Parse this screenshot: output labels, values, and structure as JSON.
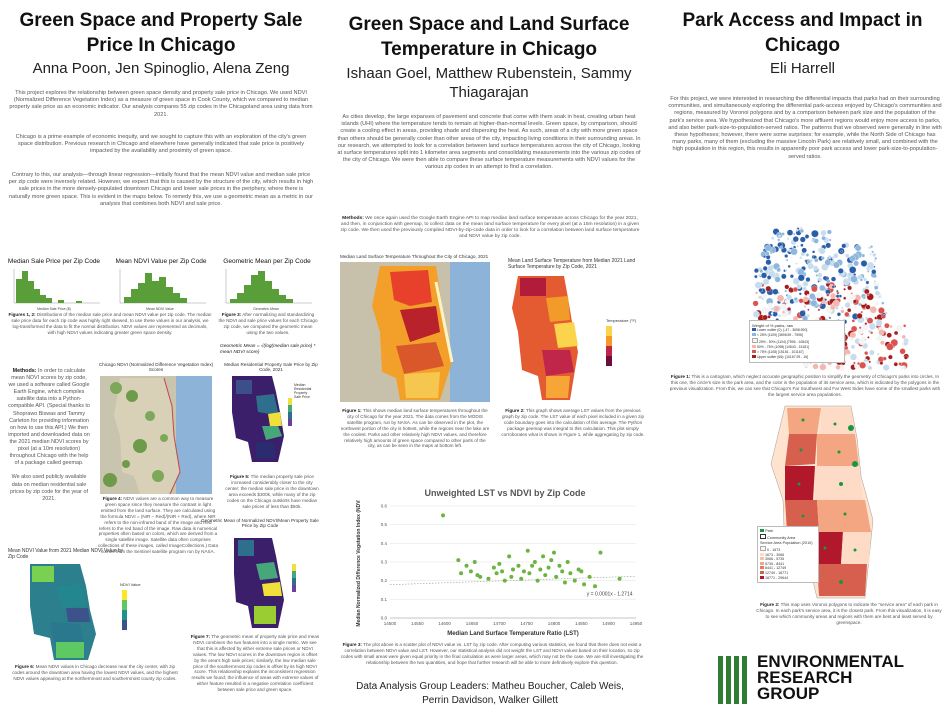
{
  "col1": {
    "title": "Green Space and Property Sale Price In Chicago",
    "authors": "Anna Poon, Jen Spinoglio, Alena Zeng",
    "intro_1": "This project explores the relationship between green space density and property sale price in Chicago. We used NDVI (Normalized Difference Vegetation Index) as a measure of green space in Cook County, which we compared to median property sale price as an economic indicator. Our analysis compares 55 zip codes in the Chicagoland area using data from 2021.",
    "intro_2": "Chicago is a prime example of economic inequity, and we sought to capture this with an exploration of the city's green space distribution. Previous research in Chicago and elsewhere have generally indicated that sale price is positively impacted by the availability and proximity of green space.",
    "intro_3": "Contrary to this, our analysis—through linear regression—initially found that the mean NDVI value and median sale price per zip code were inversely related. However, we expect that this is caused by the structure of the city, which results in high sale prices in the more densely-populated downtown Chicago and lower sale prices in the periphery, where there is naturally more green space. This is evident in the maps below. To remedy this, we use a geometric mean as a metric in our analysis that combines both NDVI and sale price.",
    "hist1_title": "Median Sale Price per Zip Code",
    "hist2_title": "Mean NDVI Value per Zip Code",
    "hist3_title": "Geometric Mean per Zip Code",
    "hist1_xlabel": "Median Sale Price ($)",
    "hist2_xlabel": "Mean NDVI Value",
    "hist3_xlabel": "Geometric Mean",
    "fig12_label": "Figures 1, 2:",
    "fig12_text": "Distributions of the median sale price and mean NDVI value per zip code. The median sale price data for each zip code was highly right skewed, to use these values in our analysis, we log-transformed the data to fit the normal distribution. NDVI values are represented as decimals, with high NDVI values indicating greater green space density.",
    "fig3_label": "Figure 3:",
    "fig3_text": "After normalizing and standardizing the NDVI and sale price values for each Chicago zip code, we computed the geometric mean using the two values.",
    "formula": "Geometric Mean = √(log(median sale price) * mean NDVI score)",
    "methods_label": "Methods:",
    "methods_text": "In order to calculate mean NDVI scores by zip code, we used a software called Google Earth Engine, which compiles satellite data into a Python-compatible API. (Special thanks to Shoprawo Biswas and Tammy Carleton for providing information on how to use this API.) We then imported and downloaded data on the 2021 median NDVI scores by pixel (at a 10m resolution) throughout Chicago with the help of a package called geemap.",
    "methods_text2": "We also used publicly available data on median residential sale prices by zip code for the year of 2021.",
    "map_ndvi_title": "Chicago NDVI (Normalized Difference Vegetation Index) Scores",
    "fig4_label": "Figure 4:",
    "fig4_text": "NDVI values are a common way to measure green space since they measure the contrast in light emitted from the land surface. They are calculated using the formula NDVI = (NIR − Red)/(NIR + Red), where NIR refers to the non-infrared band of the image and Red refers to the red band of the image. Raw data is numerical properties often based on colors, which are derived from a single satellite image. Satellite data often comprises collections of these images, called ImageCollections.) Data comes from the Sentinel satellite program run by NASA.",
    "map_price_title": "Median Residential Property Sale Price by Zip Code, 2021",
    "price_legend": [
      "Median",
      "Residential",
      "Property",
      "Sale Price"
    ],
    "fig5_label": "Figure 5:",
    "fig5_text": "The median property sale price increased considerably closer to the city center; the median sale price in the downtown area exceeds $300k, while many of the zip codes on the Chicago outskirts have median sale prices of less than $50k.",
    "map_geo_title": "Geometric Mean of Normalized NDVI/Mean Property Sale Price by Zip Code",
    "map_ndvi_zip_title": "Mean NDVI Value from 2021 Median NDVI Value by Zip Code",
    "ndvi_legend_title": "NDVI Value",
    "fig6_label": "Figure 6:",
    "fig6_text": "Mean NDVI values in Chicago decrease near the city center, with zip codes around the downtown area having the lowest NDVI values, and the highest NDVI values appearing at the northernmost and southernmost county zip codes.",
    "fig7_label": "Figure 7:",
    "fig7_text": "The geometric mean of property sale price and mean NDVI combines the two features into a single metric. We see that this is affected by either extreme sale prices or NDVI values. The low NDVI scores in the downtown region is offset by the area's high sale prices; similarly, the low median sale price of the southernmost zip codes is offset by its high NDVI score. This relationship explains the inconsistent regression results we found; the influence of areas with extreme values of either feature resulted in a negative correlation coefficient between sale price and green space."
  },
  "col2": {
    "title": "Green Space and Land Surface Temperature in Chicago",
    "authors": "Ishaan Goel, Matthew Rubenstein, Sammy Thiagarajan",
    "intro": "As cities develop, the large expanses of pavement and concrete that come with them soak in heat, creating urban heat islands (UHI) where the temperature tends to remain at higher-than-normal levels. Green space, by comparison, should create a cooling effect in areas, providing shade and dispersing the heat. As such, areas of a city with more green space than others should be generally cooler than other areas of the city, impacting living conditions in their surrounding areas. In our research, we attempted to look for a correlation between land surface temperatures across the city of Chicago, looking at surface temperatures split into 1 kilometer area segments and consolidating measurements into the various zip codes of the city of Chicago. We were then able to compare these surface temperature measurements with NDVI values for the various zip codes in an attempt to find a correlation.",
    "methods_label": "Methods:",
    "methods_text": "We once again used the Google Earth Engine API to map median land surface temperature across Chicago for the year 2021, and then, in conjunction with geemap, to collect data on the mean land surface temperature for every pixel (at a 15m resolution) in a given zip code. We then used the previously compiled NDVI-by-zip-code data in order to look for a correlation between land surface temperature and NDVI value by zip code.",
    "map1_title": "Median Land Surface Temperature Throughout the City of Chicago, 2021",
    "map2_title": "Mean Land Surface Temperature from Median 2021 Land Surface Temperature by Zip Code, 2021",
    "lst_legend_title": "Temperature (°F)",
    "fig1_label": "Figure 1:",
    "fig1_text": "This shows median land surface temperatures throughout the city of Chicago for the year 2021. The data comes from the MODIS satellite program, run by NASA. As can be observed in the plot, the northwest portion of the city is hottest, while the regions near the lake are the coolest. Parks and other relatively high NDVI values, and therefore relatively high amounts of green space compared to other parts of the city, as can be seen in the maps at bottom left.",
    "fig2_label": "Figure 2:",
    "fig2_text": "This graph shows average LST values from the previous graph by zip code. The LST value of each pixel included in a given zip code boundary goes into the calculation of this average. The Python package geemap was integral to this calculation. This plot simply corroborates what is shown in Figure 1, while aggregating by zip code.",
    "fig3_label": "Figure 3:",
    "fig3_text": "The plot above is a scatter plot of NDVI value vs. LST by zip code. After computing various statistics, we found that there does not exist a correlation between NDVI value and LST. However, our statistical analysis did not weight the LST and NDVI values based on their location, so zip codes with small areas were given equal priority in the final calculation as were larger areas, which may not be the case. We are still investigating the relationship between the two quantities, and hope that further research will be able to more definitively explore this question.",
    "leaders": "Data Analysis Group Leaders: Matheu Boucher, Caleb Weis, Perrin Davidson, Walker Gillett"
  },
  "col3": {
    "title": "Park Access and Impact in Chicago",
    "author": "Eli Harrell",
    "intro": "For this project, we were interested in researching the differential impacts that parks had on their surrounding communities, and simultaneously exploring the differential park-access enjoyed by Chicago's communities and regions, measured by Voronoi polygons and by a comparison between park size and the population of the park's service area. We hypothesized that Chicago's more affluent regions would enjoy more access to parks, and also better park-size-to-population-served ratios. The patterns that we observed were generally in line with these hypotheses; however, there were some surprises: for example, while the North Side of Chicago has many parks, many of them (excluding the massive Lincoln Park) are relatively small, and combined with the high population in this region, this results in apparently poor park access and lower park-size-to-population-served ratios.",
    "cart_legend_title": "Weight of % parks, raw",
    "cart_legend": [
      "Lower outlier (0): [-47 - 3698.590]",
      "< 25% (1109) [3698.59 - 7596]",
      "25% - 50% (1104) [7596 - 10843]",
      "50% - 75% (1098) [10843 - 15181]",
      "> 75% (1108) [15181 - 101167]",
      "Upper outlier (66): [10167.99 - 16]"
    ],
    "fig1_label": "Figure 1:",
    "fig1_text": "This is a cartogram, which neglect accurate geographic position to simplify the geometry of Chicago's parks into circles. In this one, the circle's size is the park area, and the color is the population of its service area, which is indicated by the polygons in the previous visualization. From this, we can see that Chicago's Far Southwest and Far West Sides have some of the smallest parks with the largest service area populations.",
    "voronoi_legend_park": "Park",
    "voronoi_legend_area": "Community Area",
    "voronoi_legend_title": "Service Area Population (2010)",
    "voronoi_legend": [
      "0 - 1673",
      "1673 - 3066",
      "3066 - 5735",
      "5735 - 8441",
      "8441 - 12749",
      "12749 - 18771",
      "18771 - 29644"
    ],
    "fig2_label": "Figure 2:",
    "fig2_text": "This map uses Voronoi polygons to indicate the \"service area\" of each park in Chicago. In each park's service area, it is the closest park. From this visualization, it is easy to see which community areas and regions with them are best and least served by greenspace.",
    "logo_text": [
      "ENVIRONMENTAL",
      "RESEARCH",
      "GROUP"
    ]
  },
  "chart_data": [
    {
      "type": "scatter",
      "title": "Unweighted LST vs NDVI by Zip Code",
      "xlabel": "Median Land Surface Temperature Ratio (LST)",
      "ylabel": "Median Normalized Difference Vegetation Index (NDVI)",
      "xlim": [
        14500,
        14950
      ],
      "ylim": [
        0,
        0.6
      ],
      "xticks": [
        14500,
        14550,
        14600,
        14650,
        14700,
        14750,
        14800,
        14850,
        14900,
        14950
      ],
      "yticks": [
        0,
        0.1,
        0.2,
        0.3,
        0.4,
        0.5,
        0.6
      ],
      "trendline_label": "y = 0.0001x - 1.2714",
      "points": [
        [
          14597,
          0.55
        ],
        [
          14625,
          0.31
        ],
        [
          14630,
          0.24
        ],
        [
          14640,
          0.28
        ],
        [
          14648,
          0.25
        ],
        [
          14655,
          0.3
        ],
        [
          14660,
          0.23
        ],
        [
          14665,
          0.22
        ],
        [
          14680,
          0.21
        ],
        [
          14690,
          0.27
        ],
        [
          14695,
          0.24
        ],
        [
          14700,
          0.29
        ],
        [
          14705,
          0.25
        ],
        [
          14710,
          0.2
        ],
        [
          14718,
          0.33
        ],
        [
          14722,
          0.22
        ],
        [
          14725,
          0.26
        ],
        [
          14735,
          0.28
        ],
        [
          14740,
          0.21
        ],
        [
          14745,
          0.25
        ],
        [
          14752,
          0.36
        ],
        [
          14755,
          0.24
        ],
        [
          14760,
          0.28
        ],
        [
          14765,
          0.3
        ],
        [
          14770,
          0.2
        ],
        [
          14775,
          0.26
        ],
        [
          14780,
          0.33
        ],
        [
          14784,
          0.23
        ],
        [
          14790,
          0.27
        ],
        [
          14795,
          0.31
        ],
        [
          14800,
          0.35
        ],
        [
          14804,
          0.22
        ],
        [
          14810,
          0.28
        ],
        [
          14815,
          0.25
        ],
        [
          14820,
          0.19
        ],
        [
          14825,
          0.3
        ],
        [
          14830,
          0.24
        ],
        [
          14838,
          0.2
        ],
        [
          14845,
          0.26
        ],
        [
          14850,
          0.25
        ],
        [
          14855,
          0.18
        ],
        [
          14865,
          0.22
        ],
        [
          14875,
          0.17
        ],
        [
          14885,
          0.35
        ],
        [
          14920,
          0.21
        ]
      ]
    }
  ]
}
